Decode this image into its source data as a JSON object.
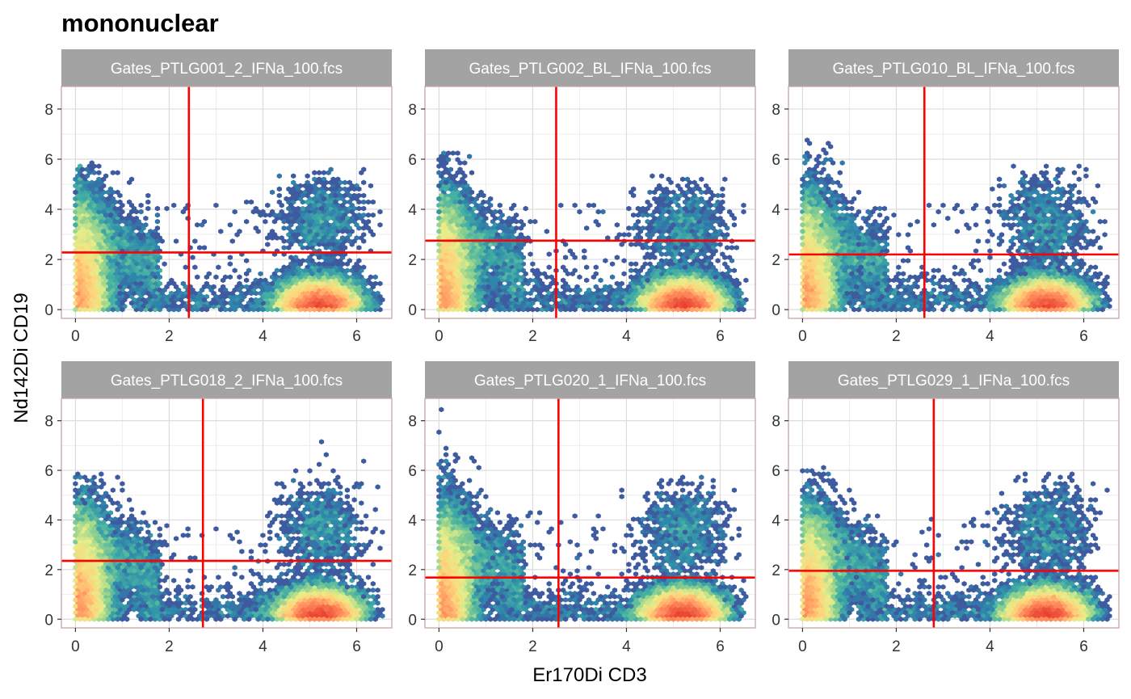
{
  "title": "mononuclear",
  "colors": {
    "strip_bg": "#a3a3a3",
    "panel_border": "#c7a3a3",
    "grid_major": "#dcdcdc",
    "grid_minor": "#eeeeee",
    "gate_line": "#ff0000",
    "density_scale": [
      "#3f3b8f",
      "#3e5ba0",
      "#2f86ab",
      "#44b0a4",
      "#8fd18f",
      "#e6ee8a",
      "#ffd27a",
      "#ff8a5c",
      "#e8412f"
    ]
  },
  "chart_data": {
    "type": "hexbin-density-facets",
    "xlabel": "Er170Di CD3",
    "ylabel": "Nd142Di CD19",
    "xlim": [
      -0.3,
      6.75
    ],
    "ylim": [
      -0.35,
      8.9
    ],
    "x_ticks": [
      0,
      2,
      4,
      6
    ],
    "y_ticks": [
      0,
      2,
      4,
      6,
      8
    ],
    "grid": true,
    "panels": [
      {
        "name": "Gates_PTLG001_2_IFNa_100.fcs",
        "gate_x": 2.42,
        "gate_y": 2.28,
        "seed": 11,
        "b_ymax": 5.8,
        "t_ymax": 5.6,
        "t_y_center": 3.6
      },
      {
        "name": "Gates_PTLG002_BL_IFNa_100.fcs",
        "gate_x": 2.5,
        "gate_y": 2.75,
        "seed": 23,
        "b_ymax": 6.4,
        "t_ymax": 5.3,
        "t_y_center": 3.2
      },
      {
        "name": "Gates_PTLG010_BL_IFNa_100.fcs",
        "gate_x": 2.6,
        "gate_y": 2.2,
        "seed": 37,
        "b_ymax": 6.8,
        "t_ymax": 5.8,
        "t_y_center": 3.4
      },
      {
        "name": "Gates_PTLG018_2_IFNa_100.fcs",
        "gate_x": 2.72,
        "gate_y": 2.35,
        "seed": 41,
        "b_ymax": 5.8,
        "t_ymax": 7.3,
        "t_y_center": 3.6
      },
      {
        "name": "Gates_PTLG020_1_IFNa_100.fcs",
        "gate_x": 2.55,
        "gate_y": 1.68,
        "seed": 53,
        "b_ymax": 8.5,
        "t_ymax": 5.8,
        "t_y_center": 3.5
      },
      {
        "name": "Gates_PTLG029_1_IFNa_100.fcs",
        "gate_x": 2.8,
        "gate_y": 1.95,
        "seed": 67,
        "b_ymax": 6.1,
        "t_ymax": 5.9,
        "t_y_center": 3.5
      }
    ]
  }
}
